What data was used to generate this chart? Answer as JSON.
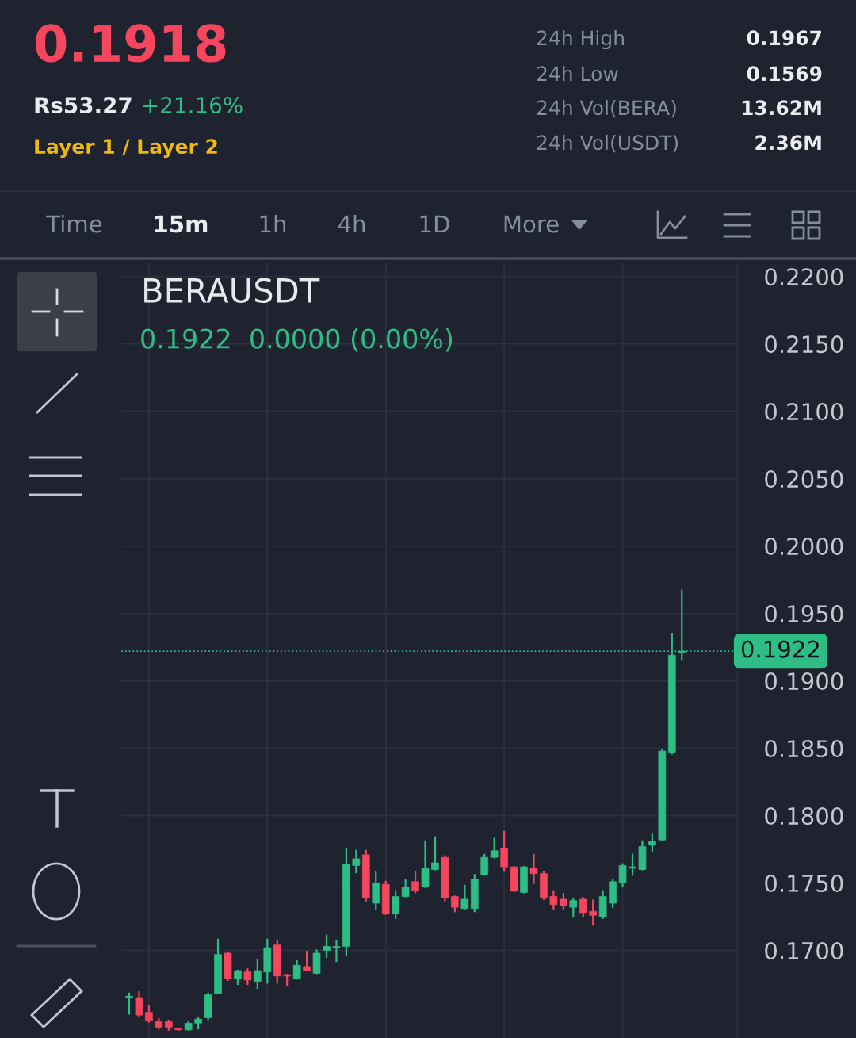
{
  "chart_data": {
    "type": "candlestick",
    "title": "BERAUSDT",
    "subtitle": "0.1922  0.0000 (0.00%)",
    "annotations": [
      "0.1918",
      "Rs53.27",
      "+21.16%",
      "Layer 1 / Layer 2",
      "24h High",
      "0.1967",
      "24h Low",
      "0.1569",
      "24h Vol(BERA)",
      "13.62M",
      "24h Vol(USDT)",
      "2.36M",
      "Time",
      "15m",
      "1h",
      "4h",
      "1D",
      "More"
    ],
    "categories": [
      null,
      null,
      null,
      null,
      null,
      null,
      null,
      null,
      null,
      null,
      null,
      null,
      null,
      null,
      null,
      null,
      null,
      null,
      null,
      null,
      null,
      null,
      null,
      null,
      null,
      null,
      null,
      null,
      null,
      null,
      null,
      null,
      null,
      null,
      null,
      null,
      null,
      null,
      null,
      null,
      null,
      null,
      null,
      null,
      null,
      null,
      null,
      null,
      null,
      null,
      null,
      null,
      null,
      null,
      null,
      null,
      null
    ],
    "ohlc": [
      [
        0.1665,
        0.1668,
        0.1653,
        0.1666
      ],
      [
        0.1665,
        0.1669,
        0.1651,
        0.1652
      ],
      [
        0.1654,
        0.1659,
        0.1647,
        0.1648
      ],
      [
        0.1647,
        0.1649,
        0.1642,
        0.1643
      ],
      [
        0.1647,
        0.1648,
        0.1641,
        0.1643
      ],
      [
        0.1642,
        0.1642,
        0.1641,
        0.1641
      ],
      [
        0.1641,
        0.1647,
        0.1641,
        0.1646
      ],
      [
        0.1646,
        0.165,
        0.1642,
        0.1649
      ],
      [
        0.165,
        0.1668,
        0.1649,
        0.1667
      ],
      [
        0.1668,
        0.1708,
        0.1668,
        0.1697
      ],
      [
        0.1698,
        0.1698,
        0.1678,
        0.1679
      ],
      [
        0.1679,
        0.1685,
        0.1675,
        0.1685
      ],
      [
        0.1684,
        0.1686,
        0.1675,
        0.1678
      ],
      [
        0.1677,
        0.1693,
        0.1672,
        0.1685
      ],
      [
        0.1684,
        0.1708,
        0.1676,
        0.1702
      ],
      [
        0.1704,
        0.1707,
        0.1676,
        0.1681
      ],
      [
        0.1682,
        0.1682,
        0.1674,
        0.1681
      ],
      [
        0.1679,
        0.1692,
        0.1679,
        0.1689
      ],
      [
        0.1688,
        0.1699,
        0.1685,
        0.1685
      ],
      [
        0.1683,
        0.17,
        0.1683,
        0.1698
      ],
      [
        0.17,
        0.1711,
        0.1695,
        0.1703
      ],
      [
        0.1702,
        0.1707,
        0.1692,
        0.1703
      ],
      [
        0.1703,
        0.1775,
        0.1697,
        0.1764
      ],
      [
        0.1763,
        0.1774,
        0.1758,
        0.1768
      ],
      [
        0.1771,
        0.1774,
        0.1737,
        0.1739
      ],
      [
        0.1735,
        0.1758,
        0.1731,
        0.175
      ],
      [
        0.1749,
        0.1751,
        0.1727,
        0.1727
      ],
      [
        0.1727,
        0.1744,
        0.1724,
        0.174
      ],
      [
        0.174,
        0.1752,
        0.174,
        0.1747
      ],
      [
        0.1751,
        0.1758,
        0.1743,
        0.1744
      ],
      [
        0.1747,
        0.1781,
        0.1747,
        0.1761
      ],
      [
        0.176,
        0.1784,
        0.176,
        0.1765
      ],
      [
        0.1769,
        0.177,
        0.1737,
        0.1739
      ],
      [
        0.174,
        0.174,
        0.1729,
        0.1732
      ],
      [
        0.1731,
        0.1748,
        0.1731,
        0.1738
      ],
      [
        0.1731,
        0.1756,
        0.1729,
        0.1753
      ],
      [
        0.1756,
        0.1771,
        0.1756,
        0.1769
      ],
      [
        0.1769,
        0.1783,
        0.1769,
        0.1774
      ],
      [
        0.1776,
        0.1788,
        0.1759,
        0.1762
      ],
      [
        0.1762,
        0.1762,
        0.1744,
        0.1744
      ],
      [
        0.1743,
        0.1762,
        0.1743,
        0.1762
      ],
      [
        0.1761,
        0.1771,
        0.175,
        0.1757
      ],
      [
        0.1757,
        0.1758,
        0.1738,
        0.1739
      ],
      [
        0.174,
        0.1744,
        0.1731,
        0.1734
      ],
      [
        0.1738,
        0.1742,
        0.1731,
        0.1733
      ],
      [
        0.1732,
        0.1738,
        0.1725,
        0.1737
      ],
      [
        0.1738,
        0.1739,
        0.1725,
        0.1728
      ],
      [
        0.1729,
        0.1737,
        0.1719,
        0.1726
      ],
      [
        0.1725,
        0.1744,
        0.1724,
        0.174
      ],
      [
        0.1735,
        0.1752,
        0.1732,
        0.1751
      ],
      [
        0.175,
        0.1764,
        0.1748,
        0.1763
      ],
      [
        0.1761,
        0.1771,
        0.1756,
        0.1762
      ],
      [
        0.176,
        0.1781,
        0.176,
        0.1777
      ],
      [
        0.1778,
        0.1786,
        0.1774,
        0.1781
      ],
      [
        0.1782,
        0.1849,
        0.1782,
        0.1848
      ],
      [
        0.1847,
        0.1935,
        0.1846,
        0.1919
      ],
      [
        0.1921,
        0.1967,
        0.1916,
        0.1922
      ]
    ],
    "colors": [
      "#2ebd85",
      "#f6465d",
      "#f6465d",
      "#f6465d",
      "#f6465d",
      "#f6465d",
      "#2ebd85",
      "#2ebd85",
      "#2ebd85",
      "#2ebd85",
      "#f6465d",
      "#2ebd85",
      "#f6465d",
      "#2ebd85",
      "#2ebd85",
      "#f6465d",
      "#f6465d",
      "#2ebd85",
      "#f6465d",
      "#2ebd85",
      "#2ebd85",
      "#2ebd85",
      "#2ebd85",
      "#2ebd85",
      "#f6465d",
      "#2ebd85",
      "#f6465d",
      "#2ebd85",
      "#2ebd85",
      "#f6465d",
      "#2ebd85",
      "#2ebd85",
      "#f6465d",
      "#f6465d",
      "#2ebd85",
      "#2ebd85",
      "#2ebd85",
      "#2ebd85",
      "#f6465d",
      "#f6465d",
      "#2ebd85",
      "#f6465d",
      "#f6465d",
      "#f6465d",
      "#f6465d",
      "#2ebd85",
      "#f6465d",
      "#f6465d",
      "#2ebd85",
      "#2ebd85",
      "#2ebd85",
      "#2ebd85",
      "#2ebd85",
      "#2ebd85",
      "#2ebd85",
      "#2ebd85",
      "#2ebd85"
    ],
    "ylim": [
      0.1635,
      0.2211
    ],
    "yticks": [
      {
        "value": 0.17,
        "label": "0.1700"
      },
      {
        "value": 0.175,
        "label": "0.1750"
      },
      {
        "value": 0.18,
        "label": "0.1800"
      },
      {
        "value": 0.185,
        "label": "0.1850"
      },
      {
        "value": 0.19,
        "label": "0.1900"
      },
      {
        "value": 0.195,
        "label": "0.1950"
      },
      {
        "value": 0.2,
        "label": "0.2000"
      },
      {
        "value": 0.205,
        "label": "0.2050"
      },
      {
        "value": 0.21,
        "label": "0.2100"
      },
      {
        "value": 0.215,
        "label": "0.2150"
      },
      {
        "value": 0.22,
        "label": "0.2200"
      }
    ],
    "tick_labels": "y",
    "grid": true,
    "ref_lines": [
      {
        "axis": "y",
        "value": 0.1922,
        "label": "0.1922",
        "color": "#2ebd85",
        "line_style": "dotted"
      }
    ]
  }
}
